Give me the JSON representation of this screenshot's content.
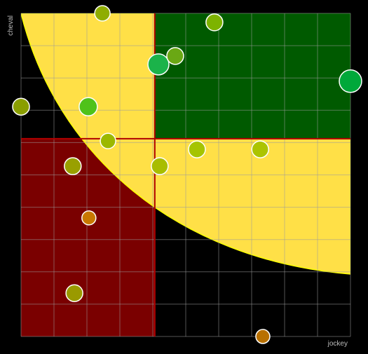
{
  "chart_data": {
    "type": "bubble",
    "x_label": "jockey",
    "y_label": "cheval",
    "xlim": [
      0,
      10
    ],
    "ylim": [
      0,
      10
    ],
    "xticks": [
      0,
      1,
      2,
      3,
      4,
      5,
      6,
      7,
      8,
      9,
      10
    ],
    "yticks": [
      0,
      1,
      2,
      3,
      4,
      5,
      6,
      7,
      8,
      9,
      10
    ],
    "grid": true,
    "thresholds": {
      "x": 4.06,
      "y": 6.12
    },
    "x": [
      2.47,
      5.87,
      4.17,
      4.68,
      10.0,
      0,
      2.04,
      2.64,
      1.57,
      4.21,
      5.34,
      7.26,
      2.06,
      1.62,
      7.34
    ],
    "y": [
      10.0,
      9.72,
      8.42,
      8.68,
      7.9,
      7.11,
      7.11,
      6.05,
      5.27,
      5.27,
      5.79,
      5.79,
      3.67,
      1.34,
      0
    ],
    "sizes": [
      11,
      12,
      15,
      12,
      16,
      12,
      13,
      11,
      12,
      12,
      12,
      12,
      10,
      12,
      10
    ],
    "colors": [
      "#8fad00",
      "#7db300",
      "#1bb34a",
      "#6aa814",
      "#00a83a",
      "#8a9e00",
      "#4fc21a",
      "#9cb800",
      "#99a000",
      "#a8bd00",
      "#a5c400",
      "#acc400",
      "#c87800",
      "#9a9a00",
      "#b87000"
    ]
  }
}
